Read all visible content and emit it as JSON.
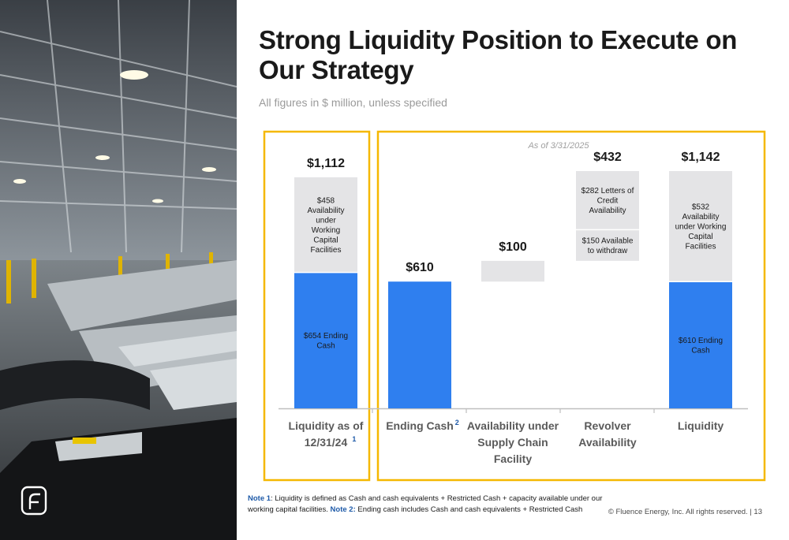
{
  "title": "Strong Liquidity Position to Execute on Our Strategy",
  "subtitle": "All figures in $ million, unless specified",
  "as_of": "As of 3/31/2025",
  "notes": {
    "note1_label": "Note 1",
    "note1_text": ": Liquidity is defined as Cash and cash equivalents + Restricted Cash + capacity available under our working capital facilities. ",
    "note2_label": "Note 2:",
    "note2_text": " Ending cash includes Cash and cash equivalents + Restricted Cash"
  },
  "footer": {
    "copyright": "© Fluence Energy, Inc. All rights reserved.",
    "separator": "|",
    "page_number": "13"
  },
  "logo": {
    "icon": "fluence-logo-icon"
  },
  "colors": {
    "blue": "#2f7fef",
    "gray": "#e4e4e6",
    "highlight_border": "#f5b800",
    "axis": "#bfbfbf"
  },
  "chart_data": {
    "type": "bar",
    "y_unit": "$ million",
    "ylim": [
      0,
      1142
    ],
    "grid": false,
    "categories": [
      {
        "lines": [
          "Liquidity as of",
          "12/31/24"
        ],
        "sup": "1"
      },
      {
        "lines": [
          "Ending Cash"
        ],
        "sup": "2"
      },
      {
        "lines": [
          "Availability under",
          "Supply Chain",
          "Facility"
        ],
        "sup": ""
      },
      {
        "lines": [
          "Revolver",
          "Availability"
        ],
        "sup": ""
      },
      {
        "lines": [
          "Liquidity"
        ],
        "sup": ""
      }
    ],
    "bars": [
      {
        "total_label": "$1,112",
        "segments": [
          {
            "base": 0,
            "value": 654,
            "color": "blue",
            "label": [
              "$654 Ending",
              "Cash"
            ]
          },
          {
            "base": 654,
            "value": 458,
            "color": "gray",
            "label": [
              "$458",
              "Availability",
              "under",
              "Working",
              "Capital",
              "Facilities"
            ]
          }
        ]
      },
      {
        "total_label": "$610",
        "segments": [
          {
            "base": 0,
            "value": 610,
            "color": "blue",
            "label": []
          }
        ]
      },
      {
        "total_label": "$100",
        "segments": [
          {
            "base": 610,
            "value": 100,
            "color": "gray",
            "label": []
          }
        ]
      },
      {
        "total_label": "$432",
        "segments": [
          {
            "base": 710,
            "value": 150,
            "color": "gray",
            "label": [
              "$150 Available",
              "to withdraw"
            ]
          },
          {
            "base": 860,
            "value": 282,
            "color": "gray",
            "label": [
              "$282 Letters of",
              "Credit",
              "Availability"
            ]
          }
        ]
      },
      {
        "total_label": "$1,142",
        "segments": [
          {
            "base": 0,
            "value": 610,
            "color": "blue",
            "label": [
              "$610 Ending",
              "Cash"
            ]
          },
          {
            "base": 610,
            "value": 532,
            "color": "gray",
            "label": [
              "$532",
              "Availability",
              "under Working",
              "Capital",
              "Facilities"
            ]
          }
        ]
      }
    ]
  }
}
